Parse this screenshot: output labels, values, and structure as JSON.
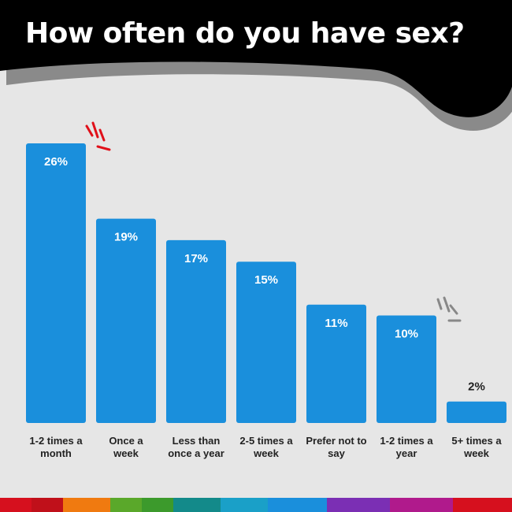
{
  "chart_data": {
    "type": "bar",
    "title": "How often do you have sex?",
    "categories": [
      "1-2 times a\nmonth",
      "Once a\nweek",
      "Less than\nonce a year",
      "2-5 times a\nweek",
      "Prefer not to\nsay",
      "1-2 times a\nyear",
      "5+ times a\nweek"
    ],
    "values": [
      26,
      19,
      17,
      15,
      11,
      10,
      2
    ],
    "value_labels": [
      "26%",
      "19%",
      "17%",
      "15%",
      "11%",
      "10%",
      "2%"
    ],
    "color": "#1a8fdc"
  }
}
